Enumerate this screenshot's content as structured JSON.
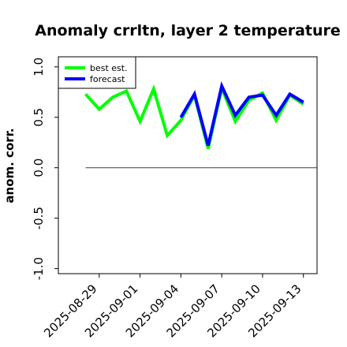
{
  "chart_data": {
    "type": "line",
    "title": "Anomaly crrltn, layer 2 temperature",
    "xlabel": "",
    "ylabel": "anom. corr.",
    "x": [
      "2025-08-28",
      "2025-08-29",
      "2025-08-30",
      "2025-08-31",
      "2025-09-01",
      "2025-09-02",
      "2025-09-03",
      "2025-09-04",
      "2025-09-05",
      "2025-09-06",
      "2025-09-07",
      "2025-09-08",
      "2025-09-09",
      "2025-09-10",
      "2025-09-11",
      "2025-09-12",
      "2025-09-13"
    ],
    "xlim": [
      "2025-08-26",
      "2025-09-14"
    ],
    "ylim": [
      -1.05,
      1.1
    ],
    "yticks": [
      -1.0,
      -0.5,
      0.0,
      0.5,
      1.0
    ],
    "yticklabels": [
      "-1.0",
      "-0.5",
      "0.0",
      "0.5",
      "1.0"
    ],
    "xticks": [
      "2025-08-29",
      "2025-09-01",
      "2025-09-04",
      "2025-09-07",
      "2025-09-10",
      "2025-09-13"
    ],
    "xticklabels": [
      "2025-08-29",
      "2025-09-01",
      "2025-09-04",
      "2025-09-07",
      "2025-09-10",
      "2025-09-13"
    ],
    "highlight_tick": "2025-09-04",
    "highlight_color": "#228B22",
    "reference_line": 0.0,
    "legend_position": "upper-left",
    "grid": false,
    "series": [
      {
        "name": "best est.",
        "color": "#00ff00",
        "values": [
          0.73,
          0.58,
          0.7,
          0.76,
          0.46,
          0.78,
          0.32,
          0.47,
          0.72,
          0.19,
          0.79,
          0.46,
          0.67,
          0.74,
          0.47,
          0.72,
          0.63
        ]
      },
      {
        "name": "forecast",
        "color": "#0000ff",
        "values": [
          null,
          null,
          null,
          null,
          null,
          null,
          null,
          0.5,
          0.73,
          0.22,
          0.81,
          0.52,
          0.7,
          0.72,
          0.52,
          0.73,
          0.65
        ]
      }
    ]
  }
}
